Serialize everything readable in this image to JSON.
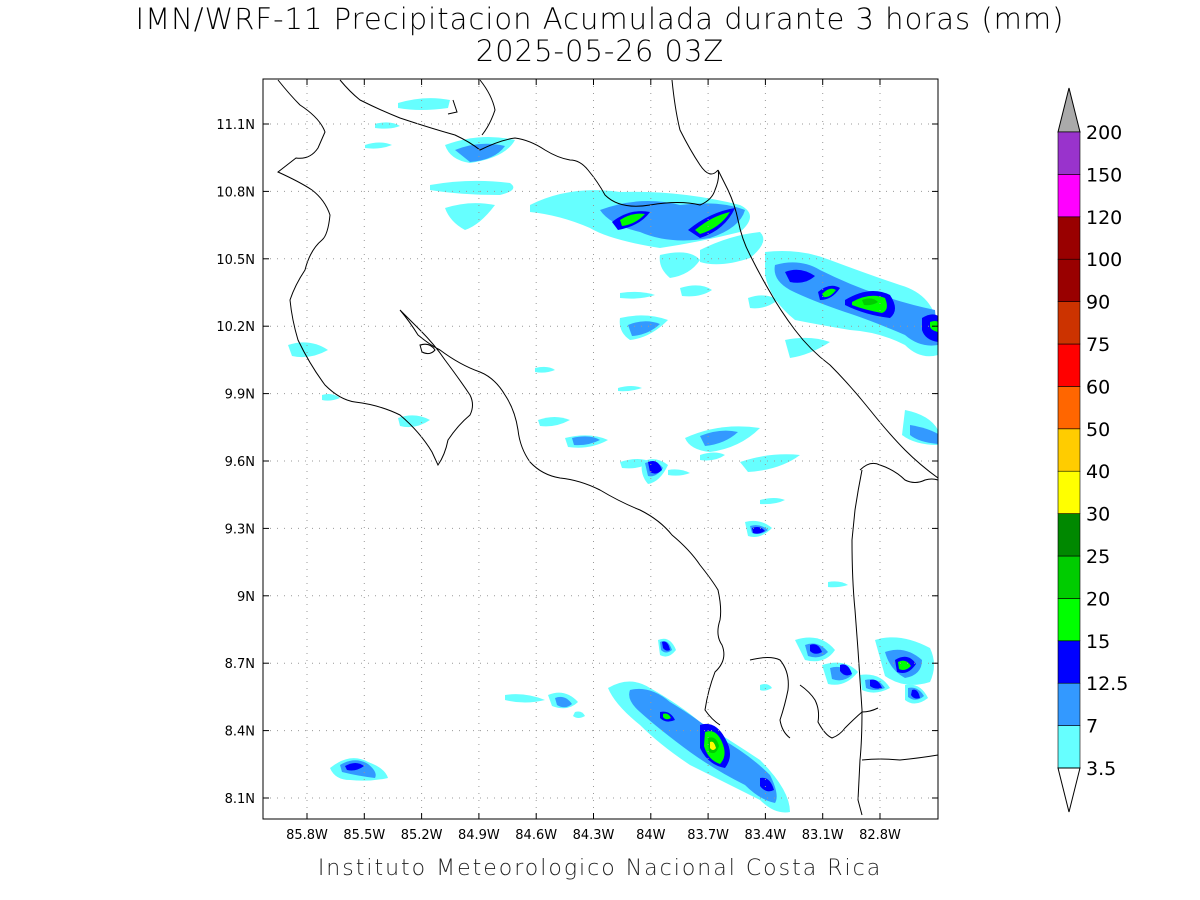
{
  "header": {
    "title_line1": "IMN/WRF-11 Precipitacion Acumulada durante 3 horas (mm)",
    "title_line2": "2025-05-26 03Z"
  },
  "footer": {
    "credit": "Instituto Meteorologico Nacional Costa Rica"
  },
  "map": {
    "lon_ticks": [
      "85.8W",
      "85.5W",
      "85.2W",
      "84.9W",
      "84.6W",
      "84.3W",
      "84W",
      "83.7W",
      "83.4W",
      "83.1W",
      "82.8W"
    ],
    "lat_ticks": [
      "11.1N",
      "10.8N",
      "10.5N",
      "10.2N",
      "9.9N",
      "9.6N",
      "9.3N",
      "9N",
      "8.7N",
      "8.4N",
      "8.1N"
    ],
    "colors": {
      "c3_5": "#66ffff",
      "c7": "#3399ff",
      "c12_5": "#0000ff",
      "c15": "#00ff00",
      "c20": "#00cc00",
      "c25": "#008800",
      "c30": "#ffff00"
    }
  },
  "colorbar": {
    "levels": [
      {
        "label": "3.5",
        "color": "#66ffff"
      },
      {
        "label": "7",
        "color": "#3399ff"
      },
      {
        "label": "12.5",
        "color": "#0000ff"
      },
      {
        "label": "15",
        "color": "#00ff00"
      },
      {
        "label": "20",
        "color": "#00cc00"
      },
      {
        "label": "25",
        "color": "#008800"
      },
      {
        "label": "30",
        "color": "#ffff00"
      },
      {
        "label": "40",
        "color": "#ffcc00"
      },
      {
        "label": "50",
        "color": "#ff6600"
      },
      {
        "label": "60",
        "color": "#ff0000"
      },
      {
        "label": "75",
        "color": "#cc3300"
      },
      {
        "label": "90",
        "color": "#990000"
      },
      {
        "label": "100",
        "color": "#990000"
      },
      {
        "label": "120",
        "color": "#ff00ff"
      },
      {
        "label": "150",
        "color": "#9933cc"
      },
      {
        "label": "200",
        "color": "#f2f2f2"
      }
    ],
    "top_arrow_color": "#aaaaaa",
    "bottom_arrow_color": "#ffffff"
  }
}
